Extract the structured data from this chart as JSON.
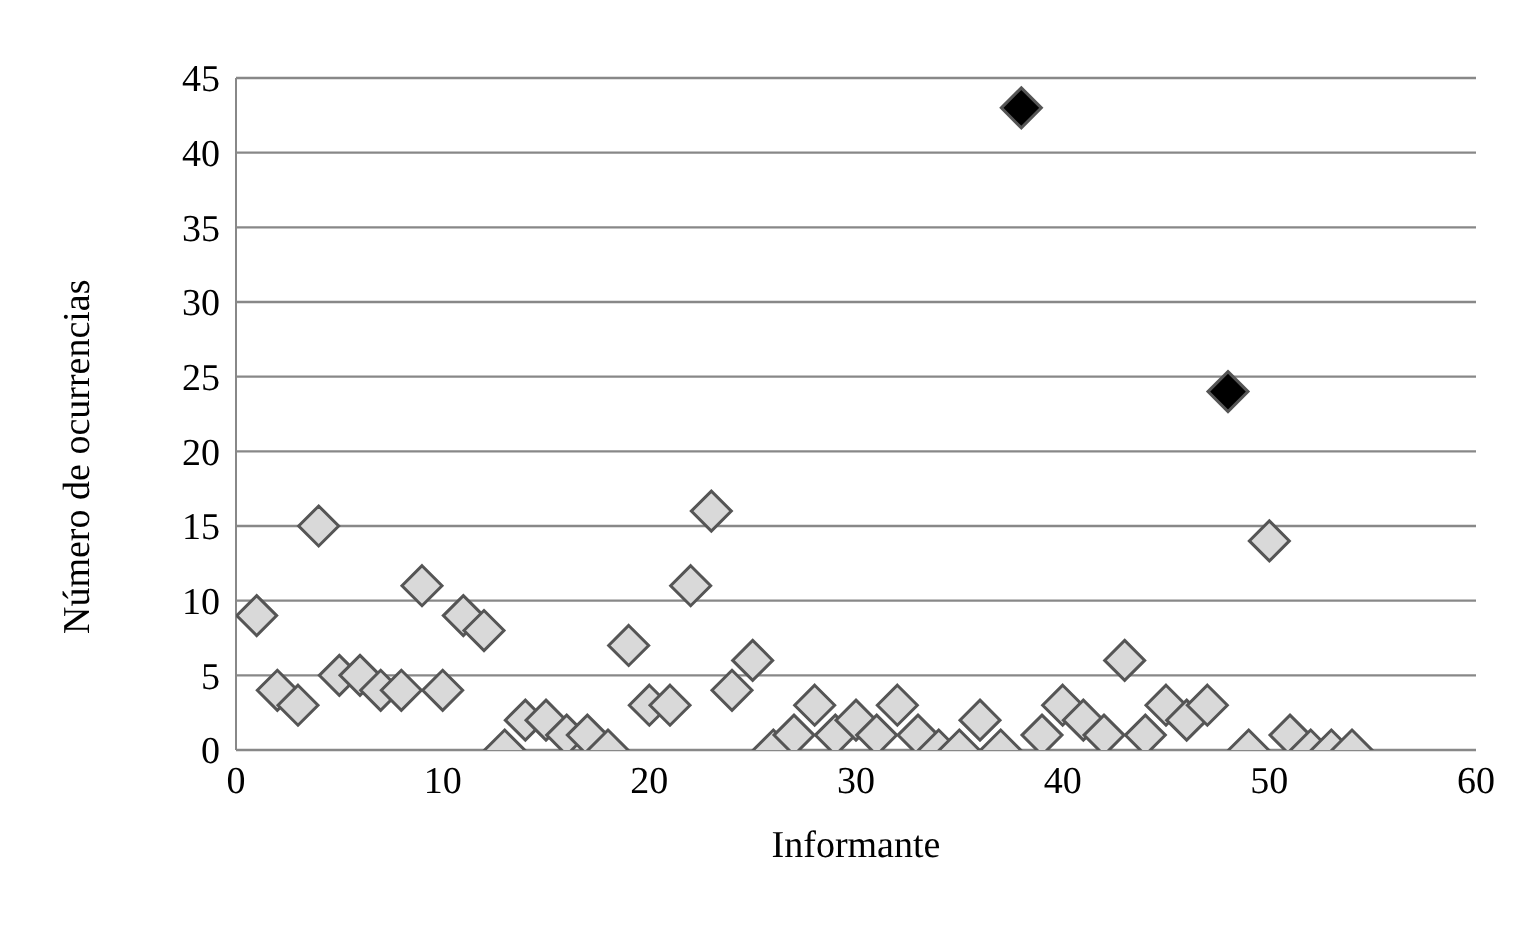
{
  "chart_data": {
    "type": "scatter",
    "xlabel": "Informante",
    "ylabel": "Número de ocurrencias",
    "xlim": [
      0,
      60
    ],
    "xticks": [
      0,
      10,
      20,
      30,
      40,
      50,
      60
    ],
    "ylim": [
      0,
      45
    ],
    "yticks": [
      0,
      5,
      10,
      15,
      20,
      25,
      30,
      35,
      40,
      45
    ],
    "grid": "y",
    "marker": "diamond",
    "legend": false,
    "series": [
      {
        "color": "#d9d9d9",
        "x": [
          1,
          2,
          3,
          4,
          5,
          6,
          7,
          8,
          9,
          10,
          11,
          12,
          13,
          14,
          15,
          16,
          17,
          18,
          19,
          20,
          21,
          22,
          23,
          24,
          25,
          26,
          27,
          28,
          29,
          30,
          31,
          32,
          33,
          34,
          35,
          36,
          37,
          39,
          40,
          41,
          42,
          43,
          44,
          45,
          46,
          47,
          49,
          50,
          51,
          52,
          53,
          54
        ],
        "values": [
          9,
          4,
          3,
          15,
          5,
          5,
          4,
          4,
          11,
          4,
          9,
          8,
          0,
          2,
          2,
          1,
          1,
          0,
          7,
          3,
          3,
          11,
          16,
          4,
          6,
          0,
          1,
          3,
          1,
          2,
          1,
          3,
          1,
          0,
          0,
          2,
          0,
          1,
          3,
          2,
          1,
          6,
          1,
          3,
          2,
          3,
          0,
          14,
          1,
          0,
          0,
          0
        ]
      },
      {
        "color": "#000000",
        "x": [
          38,
          48
        ],
        "values": [
          43,
          24
        ]
      }
    ]
  }
}
